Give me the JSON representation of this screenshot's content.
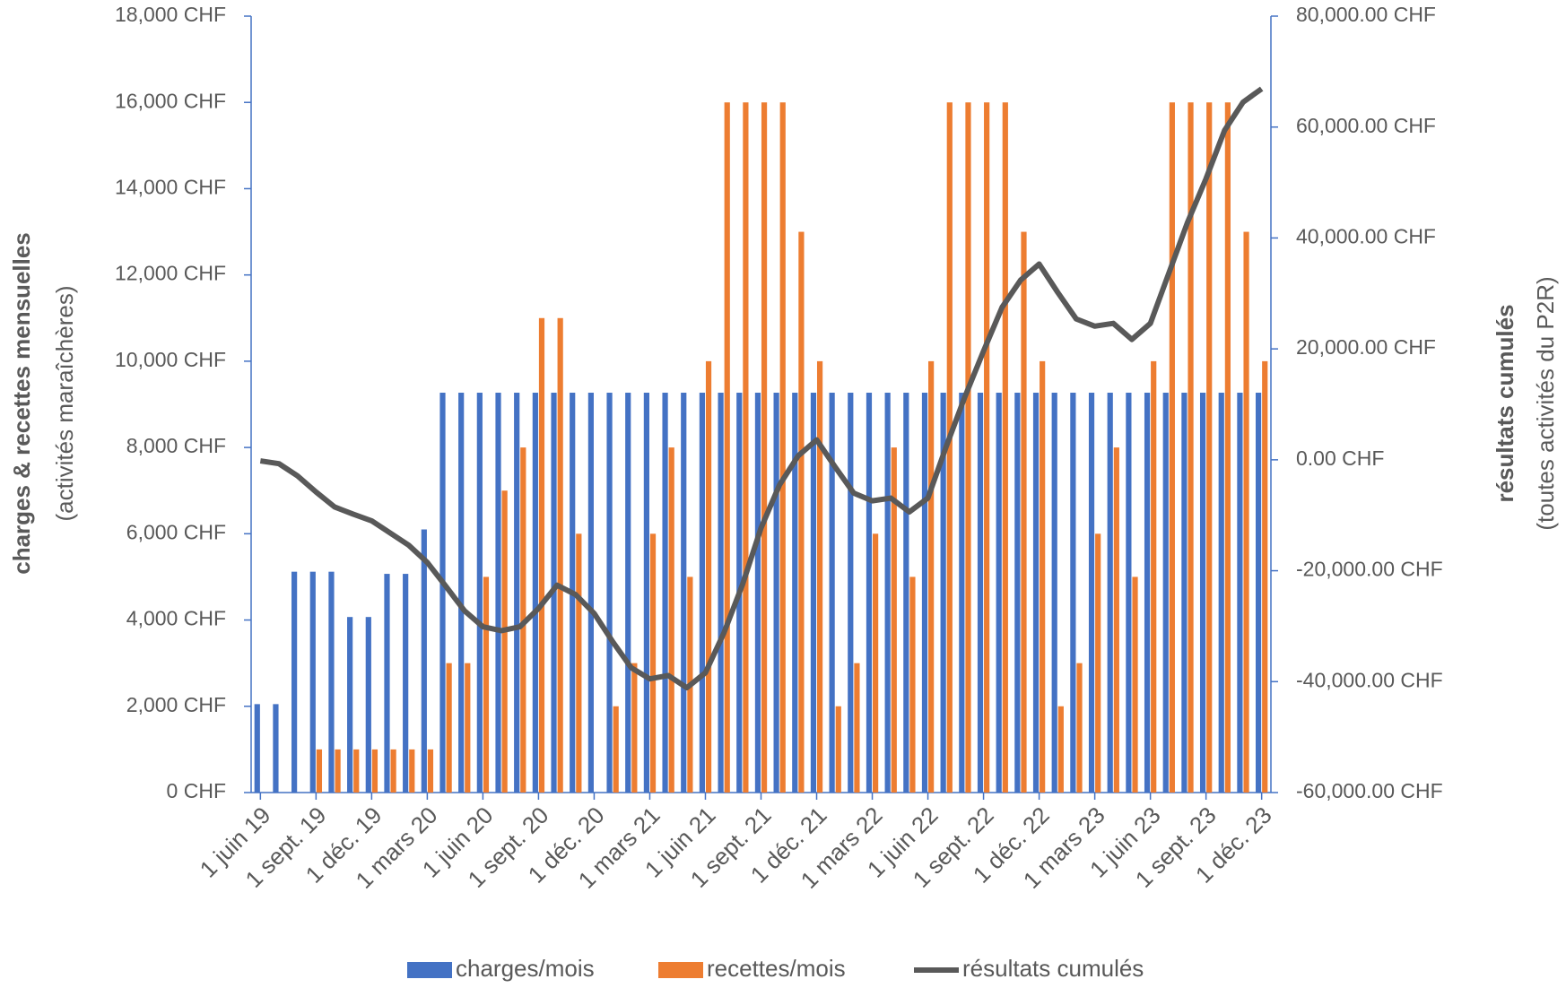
{
  "chart_data": {
    "type": "bar",
    "legend": "bottom",
    "grid": false,
    "y_label": "charges & recettes mensuelles",
    "y_sublabel": "(activités maraîchères)",
    "y2_label": "résultats cumulés",
    "y2_sublabel": "(toutes activités du P2R)",
    "categories": [
      "1 juin 19",
      null,
      null,
      "1 sept. 19",
      null,
      null,
      "1 déc. 19",
      null,
      null,
      "1 mars 20",
      null,
      null,
      "1 juin 20",
      null,
      null,
      "1 sept. 20",
      null,
      null,
      "1 déc. 20",
      null,
      null,
      "1 mars 21",
      null,
      null,
      "1 juin 21",
      null,
      null,
      "1 sept. 21",
      null,
      null,
      "1 déc. 21",
      null,
      null,
      "1 mars 22",
      null,
      null,
      "1 juin 22",
      null,
      null,
      "1 sept. 22",
      null,
      null,
      "1 déc. 22",
      null,
      null,
      "1 mars 23",
      null,
      null,
      "1 juin 23",
      null,
      null,
      "1 sept. 23",
      null,
      null,
      "1 déc. 23"
    ],
    "ylim": [
      0,
      18000
    ],
    "yticks": [
      {
        "value": 0,
        "label": "0 CHF"
      },
      {
        "value": 2000,
        "label": "2,000 CHF"
      },
      {
        "value": 4000,
        "label": "4,000 CHF"
      },
      {
        "value": 6000,
        "label": "6,000 CHF"
      },
      {
        "value": 8000,
        "label": "8,000 CHF"
      },
      {
        "value": 10000,
        "label": "10,000 CHF"
      },
      {
        "value": 12000,
        "label": "12,000 CHF"
      },
      {
        "value": 14000,
        "label": "14,000 CHF"
      },
      {
        "value": 16000,
        "label": "16,000 CHF"
      },
      {
        "value": 18000,
        "label": "18,000 CHF"
      }
    ],
    "y2lim": [
      -60000,
      80000
    ],
    "y2ticks": [
      {
        "value": -60000,
        "label": "-60,000.00 CHF"
      },
      {
        "value": -40000,
        "label": "-40,000.00 CHF"
      },
      {
        "value": -20000,
        "label": "-20,000.00 CHF"
      },
      {
        "value": 0,
        "label": "0.00 CHF"
      },
      {
        "value": 20000,
        "label": "20,000.00 CHF"
      },
      {
        "value": 40000,
        "label": "40,000.00 CHF"
      },
      {
        "value": 60000,
        "label": "60,000.00 CHF"
      },
      {
        "value": 80000,
        "label": "80,000.00 CHF"
      }
    ],
    "series": [
      {
        "name": "charges/mois",
        "type": "bar",
        "color": "#4472c4",
        "values": [
          2050,
          2050,
          5120,
          5120,
          5120,
          4070,
          4070,
          5070,
          5070,
          6100,
          9270,
          9270,
          9270,
          9270,
          9270,
          9270,
          9270,
          9270,
          9270,
          9270,
          9270,
          9270,
          9270,
          9270,
          9270,
          9270,
          9270,
          9270,
          9270,
          9270,
          9270,
          9270,
          9270,
          9270,
          9270,
          9270,
          9270,
          9270,
          9270,
          9270,
          9270,
          9270,
          9270,
          9270,
          9270,
          9270,
          9270,
          9270,
          9270,
          9270,
          9270,
          9270,
          9270,
          9270,
          9270
        ]
      },
      {
        "name": "recettes/mois",
        "type": "bar",
        "color": "#ed7d31",
        "values": [
          0,
          0,
          0,
          1000,
          1000,
          1000,
          1000,
          1000,
          1000,
          1000,
          3000,
          3000,
          5000,
          7000,
          8000,
          11000,
          11000,
          6000,
          0,
          2000,
          3000,
          6000,
          8000,
          5000,
          10000,
          16000,
          16000,
          16000,
          16000,
          13000,
          10000,
          2000,
          3000,
          6000,
          8000,
          5000,
          10000,
          16000,
          16000,
          16000,
          16000,
          13000,
          10000,
          2000,
          3000,
          6000,
          8000,
          5000,
          10000,
          16000,
          16000,
          16000,
          16000,
          13000,
          10000
        ]
      },
      {
        "name": "résultats cumulés",
        "type": "line",
        "axis": "y2",
        "color": "#595959",
        "values": [
          -200,
          -700,
          -2900,
          -5800,
          -8500,
          -9800,
          -11000,
          -13200,
          -15400,
          -18500,
          -22800,
          -27200,
          -30100,
          -30800,
          -30100,
          -26800,
          -22600,
          -24300,
          -27700,
          -32800,
          -37500,
          -39500,
          -38900,
          -41100,
          -38400,
          -31200,
          -22500,
          -12300,
          -4500,
          700,
          3600,
          -1300,
          -6000,
          -7400,
          -6900,
          -9400,
          -6900,
          2500,
          11400,
          19600,
          27500,
          32400,
          35300,
          30200,
          25400,
          24100,
          24600,
          21700,
          24600,
          33700,
          42800,
          50700,
          59400,
          64500,
          66900
        ]
      }
    ]
  }
}
